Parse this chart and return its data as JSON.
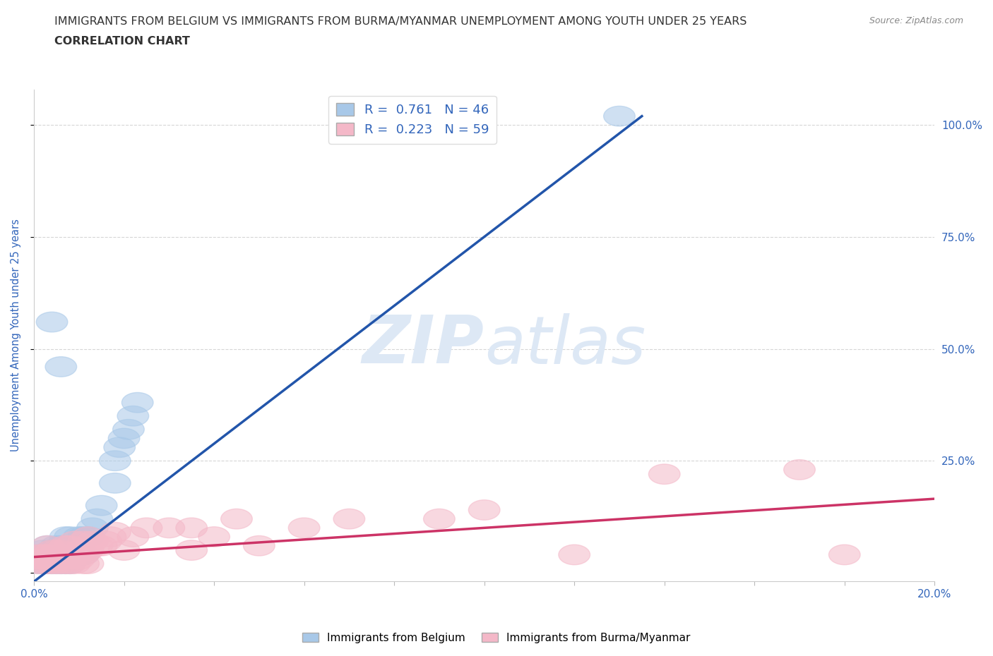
{
  "title_line1": "IMMIGRANTS FROM BELGIUM VS IMMIGRANTS FROM BURMA/MYANMAR UNEMPLOYMENT AMONG YOUTH UNDER 25 YEARS",
  "title_line2": "CORRELATION CHART",
  "source": "Source: ZipAtlas.com",
  "ylabel": "Unemployment Among Youth under 25 years",
  "xlim": [
    0.0,
    0.2
  ],
  "ylim": [
    0.0,
    1.05
  ],
  "belgium_R": 0.761,
  "belgium_N": 46,
  "burma_R": 0.223,
  "burma_N": 59,
  "belgium_color": "#a8c8e8",
  "burma_color": "#f4b8c8",
  "belgium_line_color": "#2255aa",
  "burma_line_color": "#cc3366",
  "grid_color": "#cccccc",
  "title_color": "#333333",
  "axis_label_color": "#3366bb",
  "watermark_color": "#dde8f5",
  "background_color": "#ffffff",
  "legend_text_color": "#3366bb",
  "belgium_scatter_x": [
    0.001,
    0.001,
    0.001,
    0.002,
    0.002,
    0.002,
    0.003,
    0.003,
    0.003,
    0.004,
    0.004,
    0.004,
    0.005,
    0.005,
    0.005,
    0.006,
    0.006,
    0.006,
    0.007,
    0.007,
    0.007,
    0.007,
    0.008,
    0.008,
    0.008,
    0.009,
    0.009,
    0.01,
    0.01,
    0.01,
    0.011,
    0.011,
    0.012,
    0.013,
    0.014,
    0.015,
    0.018,
    0.018,
    0.019,
    0.02,
    0.021,
    0.022,
    0.023,
    0.13,
    0.004,
    0.006
  ],
  "belgium_scatter_y": [
    0.02,
    0.03,
    0.04,
    0.02,
    0.03,
    0.05,
    0.02,
    0.04,
    0.06,
    0.02,
    0.04,
    0.05,
    0.02,
    0.04,
    0.06,
    0.02,
    0.04,
    0.06,
    0.02,
    0.04,
    0.06,
    0.08,
    0.02,
    0.04,
    0.08,
    0.04,
    0.06,
    0.04,
    0.06,
    0.08,
    0.04,
    0.08,
    0.08,
    0.1,
    0.12,
    0.15,
    0.2,
    0.25,
    0.28,
    0.3,
    0.32,
    0.35,
    0.38,
    1.02,
    0.56,
    0.46
  ],
  "burma_scatter_x": [
    0.001,
    0.001,
    0.001,
    0.002,
    0.002,
    0.002,
    0.003,
    0.003,
    0.003,
    0.003,
    0.004,
    0.004,
    0.004,
    0.005,
    0.005,
    0.005,
    0.006,
    0.006,
    0.006,
    0.007,
    0.007,
    0.007,
    0.008,
    0.008,
    0.008,
    0.009,
    0.009,
    0.009,
    0.01,
    0.01,
    0.011,
    0.011,
    0.011,
    0.012,
    0.012,
    0.012,
    0.013,
    0.014,
    0.015,
    0.016,
    0.017,
    0.018,
    0.02,
    0.022,
    0.025,
    0.03,
    0.035,
    0.035,
    0.04,
    0.045,
    0.05,
    0.06,
    0.07,
    0.09,
    0.1,
    0.12,
    0.14,
    0.17,
    0.18
  ],
  "burma_scatter_y": [
    0.02,
    0.03,
    0.04,
    0.02,
    0.03,
    0.04,
    0.02,
    0.03,
    0.04,
    0.06,
    0.02,
    0.03,
    0.05,
    0.02,
    0.03,
    0.05,
    0.02,
    0.03,
    0.05,
    0.02,
    0.04,
    0.06,
    0.02,
    0.04,
    0.06,
    0.02,
    0.04,
    0.07,
    0.03,
    0.05,
    0.02,
    0.04,
    0.07,
    0.02,
    0.05,
    0.08,
    0.07,
    0.06,
    0.06,
    0.07,
    0.08,
    0.09,
    0.05,
    0.08,
    0.1,
    0.1,
    0.05,
    0.1,
    0.08,
    0.12,
    0.06,
    0.1,
    0.12,
    0.12,
    0.14,
    0.04,
    0.22,
    0.23,
    0.04
  ],
  "bel_line_x0": 0.0,
  "bel_line_y0": -0.02,
  "bel_line_x1": 0.135,
  "bel_line_y1": 1.02,
  "bur_line_x0": 0.0,
  "bur_line_y0": 0.035,
  "bur_line_x1": 0.2,
  "bur_line_y1": 0.165
}
